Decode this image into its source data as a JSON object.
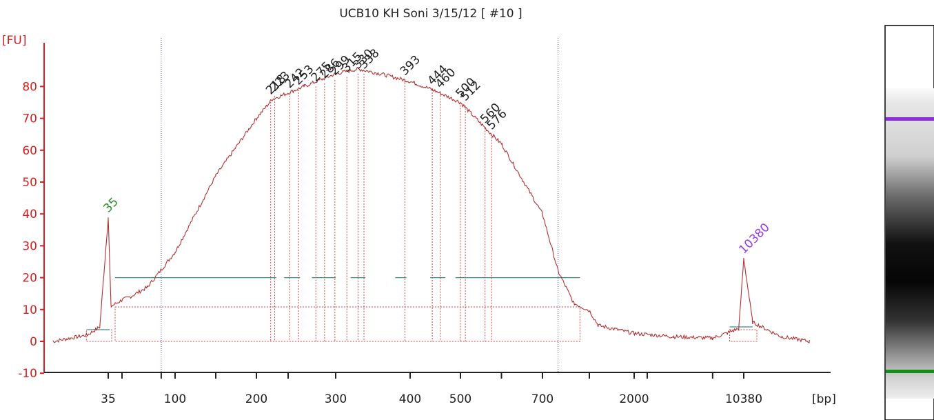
{
  "chart_data": {
    "type": "line",
    "title": "UCB10 KH Soni 3/15/12  [ #10 ]",
    "ylabel": "[FU]",
    "xlabel": "[bp]",
    "ylim": [
      -10,
      90
    ],
    "y_ticks": [
      "-10",
      "0",
      "10",
      "20",
      "30",
      "40",
      "50",
      "60",
      "70",
      "80"
    ],
    "x_ticks": [
      "35",
      "100",
      "200",
      "300",
      "400",
      "500",
      "700",
      "2000",
      "10380"
    ],
    "x_scale": "bp ladder (sizing)",
    "series": [
      {
        "color": "#b03030",
        "points": [
          [
            22,
            0.0
          ],
          [
            30,
            2.0
          ],
          [
            33,
            4.5
          ],
          [
            35,
            39.0
          ],
          [
            37,
            11.0
          ],
          [
            45,
            13.0
          ],
          [
            70,
            17.0
          ],
          [
            100,
            28.0
          ],
          [
            150,
            52.0
          ],
          [
            200,
            70.0
          ],
          [
            220,
            76.0
          ],
          [
            260,
            80.0
          ],
          [
            300,
            84.0
          ],
          [
            330,
            85.5
          ],
          [
            360,
            84.0
          ],
          [
            393,
            82.0
          ],
          [
            444,
            79.0
          ],
          [
            500,
            75.0
          ],
          [
            560,
            67.0
          ],
          [
            600,
            62.0
          ],
          [
            700,
            40.0
          ],
          [
            800,
            22.0
          ],
          [
            900,
            12.0
          ],
          [
            1200,
            5.0
          ],
          [
            2000,
            2.5
          ],
          [
            5000,
            1.5
          ],
          [
            8000,
            1.0
          ],
          [
            10000,
            4.0
          ],
          [
            10380,
            26.0
          ],
          [
            11000,
            6.0
          ],
          [
            13000,
            1.5
          ],
          [
            15000,
            0.0
          ]
        ]
      }
    ],
    "peaks": [
      {
        "label": "35",
        "x": 35,
        "y": 39,
        "color": "#2a8a2a"
      },
      {
        "label": "218",
        "x": 218,
        "y": 76
      },
      {
        "label": "223",
        "x": 223,
        "y": 77
      },
      {
        "label": "242",
        "x": 242,
        "y": 78
      },
      {
        "label": "253",
        "x": 253,
        "y": 79
      },
      {
        "label": "275",
        "x": 275,
        "y": 80
      },
      {
        "label": "286",
        "x": 286,
        "y": 81
      },
      {
        "label": "299",
        "x": 299,
        "y": 82
      },
      {
        "label": "315",
        "x": 315,
        "y": 83
      },
      {
        "label": "330",
        "x": 330,
        "y": 84
      },
      {
        "label": "338",
        "x": 338,
        "y": 84
      },
      {
        "label": "393",
        "x": 393,
        "y": 82
      },
      {
        "label": "444",
        "x": 444,
        "y": 79
      },
      {
        "label": "460",
        "x": 460,
        "y": 78
      },
      {
        "label": "500",
        "x": 500,
        "y": 75
      },
      {
        "label": "512",
        "x": 512,
        "y": 74
      },
      {
        "label": "560",
        "x": 560,
        "y": 67
      },
      {
        "label": "576",
        "x": 576,
        "y": 65
      },
      {
        "label": "10380",
        "x": 10380,
        "y": 26,
        "color": "#9b3be8"
      }
    ],
    "markers": {
      "lower": 35,
      "upper": 10380
    },
    "grid": false,
    "legend": "none",
    "gel_lane": {
      "upper_marker_color": "#8a2be2",
      "lower_marker_color": "#1a8a1a"
    }
  }
}
